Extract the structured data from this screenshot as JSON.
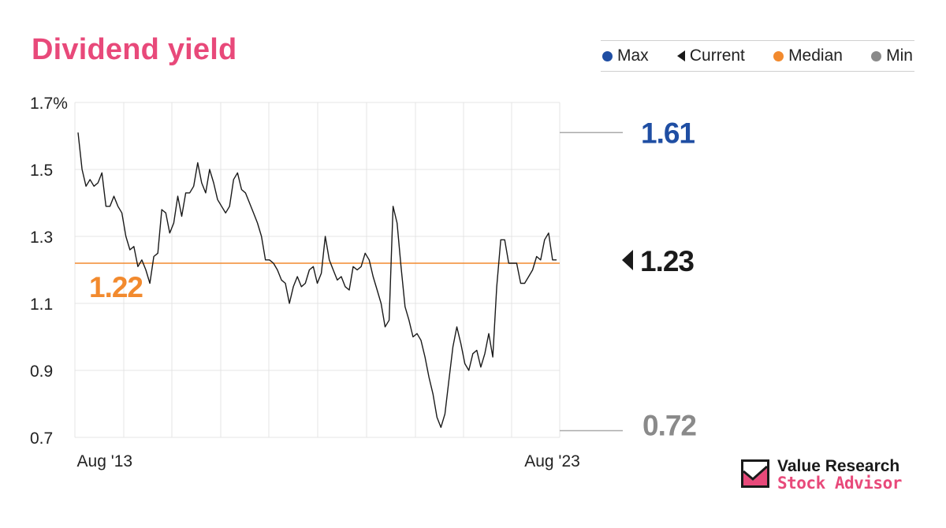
{
  "title": "Dividend yield",
  "colors": {
    "title": "#e8497a",
    "max": "#1f4ea3",
    "current": "#1a1a1a",
    "median": "#f28a2e",
    "min": "#8a8a8a",
    "line": "#1a1a1a",
    "grid": "#e4e4e4"
  },
  "legend": {
    "max": "Max",
    "current": "Current",
    "median": "Median",
    "min": "Min"
  },
  "callouts": {
    "max": "1.61",
    "current": "1.23",
    "median": "1.22",
    "min": "0.72"
  },
  "logo": {
    "line1": "Value Research",
    "line2": "Stock Advisor"
  },
  "chart_data": {
    "type": "line",
    "title": "Dividend yield",
    "xlabel": "",
    "ylabel": "",
    "y_ticks": [
      "1.7%",
      "1.5",
      "1.3",
      "1.1",
      "0.9",
      "0.7"
    ],
    "y_tick_values": [
      1.7,
      1.5,
      1.3,
      1.1,
      0.9,
      0.7
    ],
    "ylim": [
      0.7,
      1.7
    ],
    "x_tick_labels": [
      "Aug '13",
      "Aug '23"
    ],
    "x_range": [
      "2012-12",
      "2023-10"
    ],
    "x_tick_dates": [
      "2013-08",
      "2023-08"
    ],
    "grid": true,
    "legend_position": "top-right",
    "reference_lines": {
      "max": 1.61,
      "current": 1.23,
      "median": 1.22,
      "min": 0.72
    },
    "series": [
      {
        "values": [
          1.61,
          1.5,
          1.45,
          1.47,
          1.45,
          1.46,
          1.49,
          1.39,
          1.39,
          1.42,
          1.39,
          1.37,
          1.3,
          1.26,
          1.27,
          1.21,
          1.23,
          1.2,
          1.16,
          1.24,
          1.25,
          1.38,
          1.37,
          1.31,
          1.34,
          1.42,
          1.36,
          1.43,
          1.43,
          1.45,
          1.52,
          1.46,
          1.43,
          1.5,
          1.46,
          1.41,
          1.39,
          1.37,
          1.39,
          1.47,
          1.49,
          1.44,
          1.43,
          1.4,
          1.37,
          1.34,
          1.3,
          1.23,
          1.23,
          1.22,
          1.2,
          1.17,
          1.16,
          1.1,
          1.15,
          1.18,
          1.15,
          1.16,
          1.2,
          1.21,
          1.16,
          1.19,
          1.3,
          1.23,
          1.2,
          1.17,
          1.18,
          1.15,
          1.14,
          1.21,
          1.2,
          1.21,
          1.25,
          1.23,
          1.18,
          1.14,
          1.1,
          1.03,
          1.05,
          1.39,
          1.34,
          1.21,
          1.09,
          1.05,
          1.0,
          1.01,
          0.99,
          0.94,
          0.88,
          0.83,
          0.76,
          0.73,
          0.77,
          0.87,
          0.97,
          1.03,
          0.98,
          0.92,
          0.9,
          0.95,
          0.96,
          0.91,
          0.95,
          1.01,
          0.94,
          1.15,
          1.29,
          1.29,
          1.22,
          1.22,
          1.22,
          1.16,
          1.16,
          1.18,
          1.2,
          1.24,
          1.23,
          1.29,
          1.31,
          1.23,
          1.23
        ]
      }
    ]
  }
}
